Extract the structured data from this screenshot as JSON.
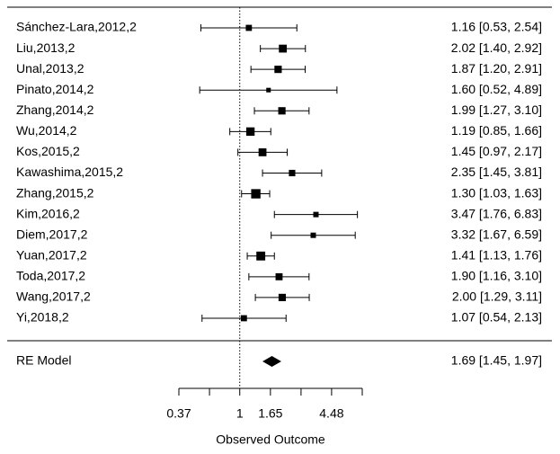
{
  "chart_data": {
    "type": "forest",
    "x_label": "Observed Outcome",
    "log_x": true,
    "xlim": [
      0.37,
      7.39
    ],
    "xticks": [
      0.37,
      1,
      1.65,
      4.48
    ],
    "minor_xticks": [
      0.61,
      2.72,
      7.39
    ],
    "reference_line": 1,
    "color": "#000000",
    "studies": [
      {
        "name": "Sánchez-Lara,2012,2",
        "value": 1.16,
        "lower": 0.53,
        "upper": 2.54,
        "label": "1.16 [0.53, 2.54]",
        "weight": 4.5
      },
      {
        "name": "Liu,2013,2",
        "value": 2.02,
        "lower": 1.4,
        "upper": 2.92,
        "label": "2.02 [1.40, 2.92]",
        "weight": 7.5
      },
      {
        "name": "Unal,2013,2",
        "value": 1.87,
        "lower": 1.2,
        "upper": 2.91,
        "label": "1.87 [1.20, 2.91]",
        "weight": 6.5
      },
      {
        "name": "Pinato,2014,2",
        "value": 1.6,
        "lower": 0.52,
        "upper": 4.89,
        "label": "1.60 [0.52, 4.89]",
        "weight": 2.5
      },
      {
        "name": "Zhang,2014,2",
        "value": 1.99,
        "lower": 1.27,
        "upper": 3.1,
        "label": "1.99 [1.27, 3.10]",
        "weight": 6.5
      },
      {
        "name": "Wu,2014,2",
        "value": 1.19,
        "lower": 0.85,
        "upper": 1.66,
        "label": "1.19 [0.85, 1.66]",
        "weight": 8.5
      },
      {
        "name": "Kos,2015,2",
        "value": 1.45,
        "lower": 0.97,
        "upper": 2.17,
        "label": "1.45 [0.97, 2.17]",
        "weight": 7.5
      },
      {
        "name": "Kawashima,2015,2",
        "value": 2.35,
        "lower": 1.45,
        "upper": 3.81,
        "label": "2.35 [1.45, 3.81]",
        "weight": 5
      },
      {
        "name": "Zhang,2015,2",
        "value": 1.3,
        "lower": 1.03,
        "upper": 1.63,
        "label": "1.30 [1.03, 1.63]",
        "weight": 10.5
      },
      {
        "name": "Kim,2016,2",
        "value": 3.47,
        "lower": 1.76,
        "upper": 6.83,
        "label": "3.47 [1.76, 6.83]",
        "weight": 3.5
      },
      {
        "name": "Diem,2017,2",
        "value": 3.32,
        "lower": 1.67,
        "upper": 6.59,
        "label": "3.32 [1.67, 6.59]",
        "weight": 3.5
      },
      {
        "name": "Yuan,2017,2",
        "value": 1.41,
        "lower": 1.13,
        "upper": 1.76,
        "label": "1.41 [1.13, 1.76]",
        "weight": 9.5
      },
      {
        "name": "Toda,2017,2",
        "value": 1.9,
        "lower": 1.16,
        "upper": 3.1,
        "label": "1.90 [1.16, 3.10]",
        "weight": 6
      },
      {
        "name": "Wang,2017,2",
        "value": 2.0,
        "lower": 1.29,
        "upper": 3.11,
        "label": "2.00 [1.29, 3.11]",
        "weight": 6.5
      },
      {
        "name": "Yi,2018,2",
        "value": 1.07,
        "lower": 0.54,
        "upper": 2.13,
        "label": "1.07 [0.54, 2.13]",
        "weight": 4.5
      }
    ],
    "summary": {
      "name": "RE Model",
      "value": 1.69,
      "lower": 1.45,
      "upper": 1.97,
      "label": "1.69 [1.45, 1.97]"
    }
  }
}
